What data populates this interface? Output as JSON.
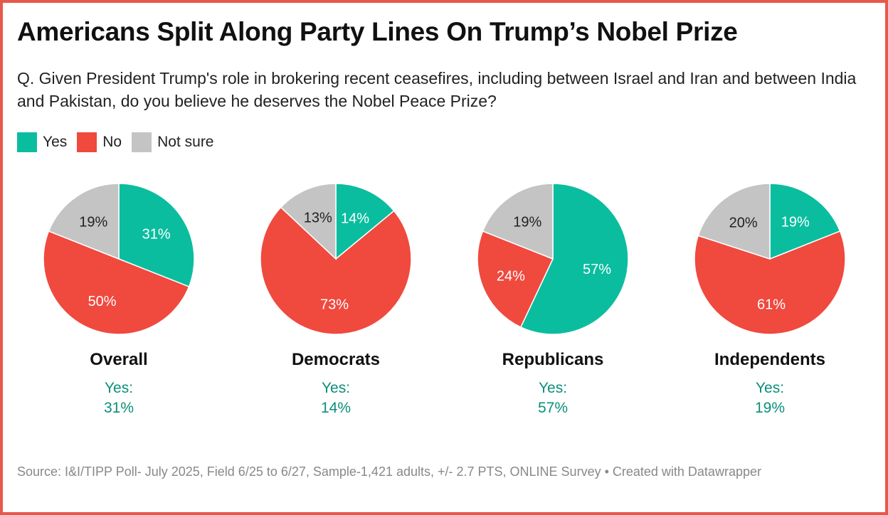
{
  "title": "Americans Split Along Party Lines On Trump’s Nobel Prize",
  "subtitle": "Q. Given President Trump's role in brokering recent ceasefires, including between Israel and Iran and between India and Pakistan, do you believe he deserves the Nobel Peace Prize?",
  "source": "Source: I&I/TIPP Poll- July 2025, Field 6/25 to 6/27, Sample-1,421 adults, +/- 2.7 PTS, ONLINE Survey • Created with Datawrapper",
  "colors": {
    "Yes": "#0bbd9f",
    "No": "#f0493e",
    "Not sure": "#c4c4c4",
    "accent": "#0a8f7a",
    "border": "#e8574a"
  },
  "chart_data": {
    "type": "pie",
    "legend": [
      "Yes",
      "No",
      "Not sure"
    ],
    "legend_placement": "top-left",
    "charts": [
      {
        "title": "Overall",
        "yes_label": "Yes:",
        "yes_value": "31%",
        "values": [
          31,
          50,
          19
        ]
      },
      {
        "title": "Democrats",
        "yes_label": "Yes:",
        "yes_value": "14%",
        "values": [
          14,
          73,
          13
        ]
      },
      {
        "title": "Republicans",
        "yes_label": "Yes:",
        "yes_value": "57%",
        "values": [
          57,
          24,
          19
        ]
      },
      {
        "title": "Independents",
        "yes_label": "Yes:",
        "yes_value": "19%",
        "values": [
          19,
          61,
          20
        ]
      }
    ]
  }
}
